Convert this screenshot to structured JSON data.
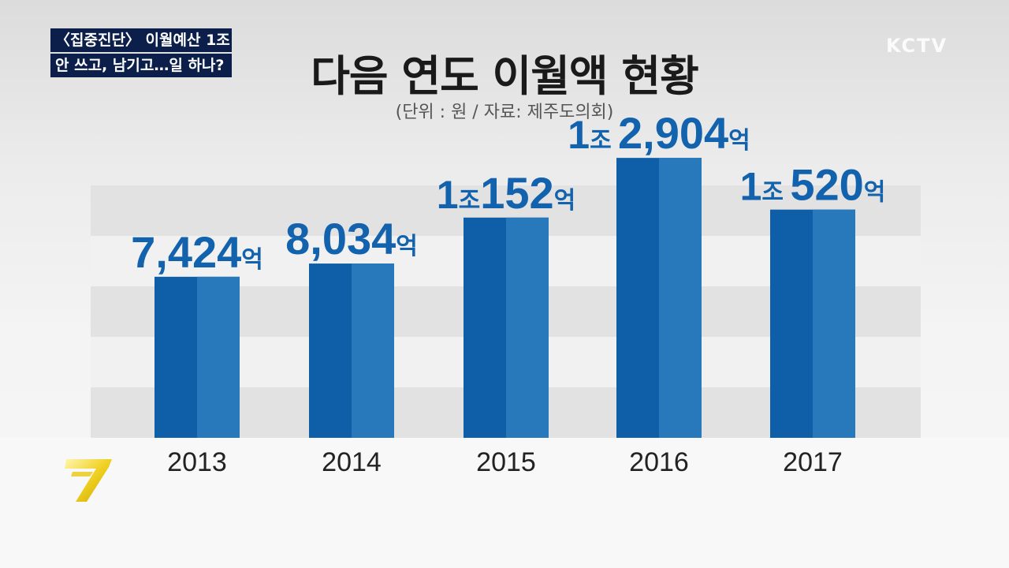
{
  "news_tag": {
    "line1": "〈집중진단〉 이월예산 1조",
    "line2": "안 쓰고, 남기고…일 하나?"
  },
  "broadcaster": "KCTV",
  "channel_logo_icon": "seven-logo-icon",
  "chart_data": {
    "type": "bar",
    "title": "다음 연도 이월액 현황",
    "subtitle": "(단위 : 원 / 자료: 제주도의회)",
    "categories": [
      "2013",
      "2014",
      "2015",
      "2016",
      "2017"
    ],
    "values": [
      742400000000,
      803400000000,
      1015200000000,
      1290400000000,
      1052000000000
    ],
    "data_labels": [
      {
        "main": "7,424",
        "unit": "억"
      },
      {
        "main": "8,034",
        "unit": "억"
      },
      {
        "pre": "1",
        "pre_unit": "조",
        "main": "152",
        "unit": "억"
      },
      {
        "pre": "1",
        "pre_unit": "조 ",
        "main": "2,904",
        "unit": "억"
      },
      {
        "pre": "1",
        "pre_unit": "조 ",
        "main": "520",
        "unit": "억"
      }
    ],
    "bar_color": "#0f5fa8",
    "bar_highlight_color": "#2d7dbf",
    "label_color": "#1262ad",
    "ylim": [
      0,
      1400000000000
    ],
    "grid": true
  }
}
